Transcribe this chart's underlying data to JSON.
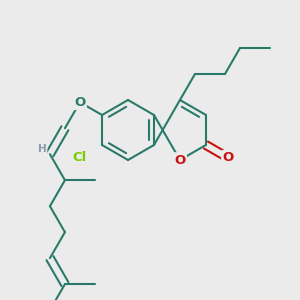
{
  "background_color": "#ebebeb",
  "bond_color": "#2a7a6a",
  "cl_color": "#7acc00",
  "o_color": "#cc1111",
  "h_color": "#8899aa",
  "line_width": 1.5,
  "font_size": 9.5,
  "figsize": [
    3.0,
    3.0
  ],
  "dpi": 100,
  "xlim": [
    0,
    300
  ],
  "ylim": [
    0,
    300
  ]
}
